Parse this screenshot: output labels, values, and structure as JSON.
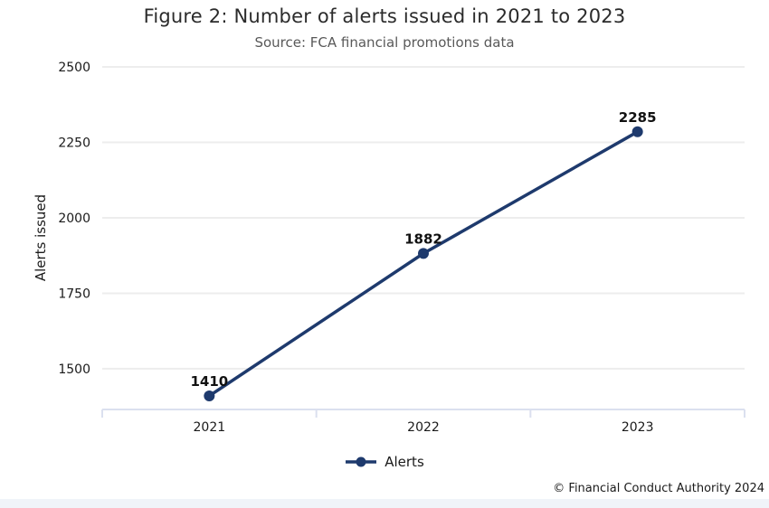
{
  "title": "Figure 2: Number of alerts issued in 2021 to 2023",
  "subtitle": "Source: FCA financial promotions data",
  "footer_credit": "© Financial Conduct Authority 2024",
  "legend": {
    "label": "Alerts"
  },
  "colors": {
    "series": "#1e3a6d",
    "gridline": "#ededed",
    "axis": "#dbe0ef",
    "tick_label": "#1a1a1a",
    "data_label": "#111111",
    "subtitle": "#595959",
    "bottom_strip": "#f0f4f9"
  },
  "chart_data": {
    "type": "line",
    "title": "Figure 2: Number of alerts issued in 2021 to 2023",
    "subtitle": "Source: FCA financial promotions data",
    "categories": [
      "2021",
      "2022",
      "2023"
    ],
    "series": [
      {
        "name": "Alerts",
        "values": [
          1410,
          1882,
          2285
        ]
      }
    ],
    "data_labels": [
      1410,
      1882,
      2285
    ],
    "xlabel": "",
    "ylabel": "Alerts issued",
    "yticks": [
      1500,
      1750,
      2000,
      2250,
      2500
    ],
    "ylim": [
      1365,
      2500
    ],
    "grid": "horizontal",
    "legend_position": "bottom",
    "marker": "circle"
  }
}
